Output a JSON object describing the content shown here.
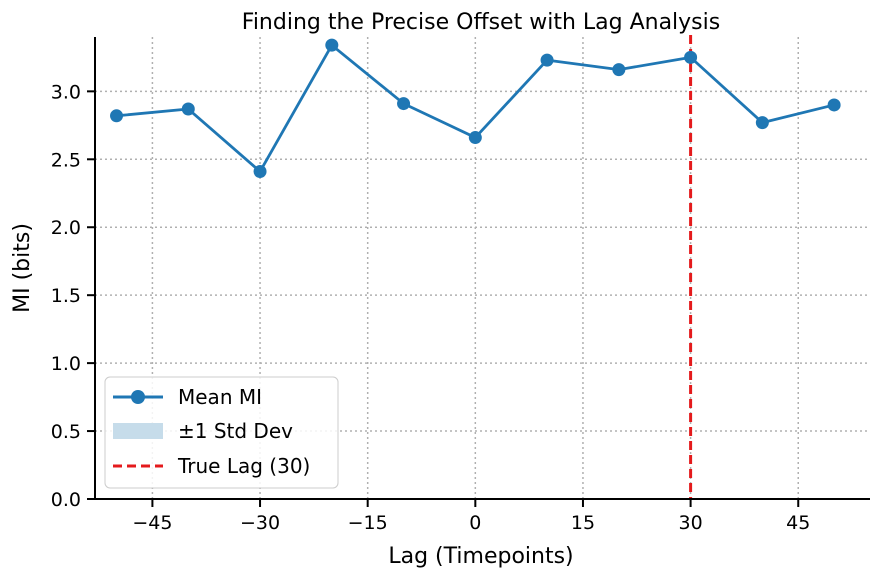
{
  "chart_data": {
    "type": "line",
    "title": "Finding the Precise Offset with Lag Analysis",
    "xlabel": "Lag (Timepoints)",
    "ylabel": "MI (bits)",
    "xlim": [
      -53,
      55
    ],
    "ylim": [
      0,
      3.4
    ],
    "xticks": [
      -45,
      -30,
      -15,
      0,
      15,
      30,
      45
    ],
    "xtick_labels": [
      "−45",
      "−30",
      "−15",
      "0",
      "15",
      "30",
      "45"
    ],
    "yticks": [
      0.0,
      0.5,
      1.0,
      1.5,
      2.0,
      2.5,
      3.0
    ],
    "ytick_labels": [
      "0.0",
      "0.5",
      "1.0",
      "1.5",
      "2.0",
      "2.5",
      "3.0"
    ],
    "grid": true,
    "legend_position": "lower-left",
    "series": [
      {
        "name": "Mean MI",
        "color": "#1f77b4",
        "x": [
          -50,
          -40,
          -30,
          -20,
          -10,
          0,
          10,
          20,
          30,
          40,
          50
        ],
        "values": [
          2.82,
          2.87,
          2.41,
          3.34,
          2.91,
          2.66,
          3.23,
          3.16,
          3.25,
          2.77,
          2.9
        ]
      }
    ],
    "std_band": {
      "name": "±1 Std Dev",
      "color": "#c6dcea"
    },
    "reference_line": {
      "name": "True Lag (30)",
      "x": 30,
      "color": "#e41a1c",
      "style": "dashed"
    }
  }
}
